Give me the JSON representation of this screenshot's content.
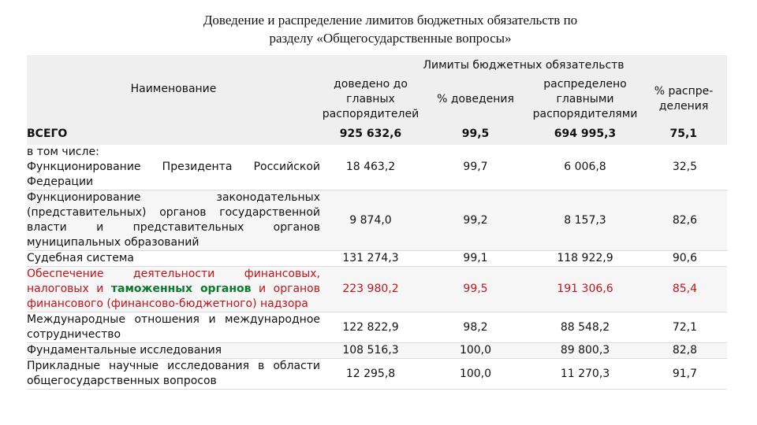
{
  "title": {
    "line1": "Доведение и распределение лимитов бюджетных обязательств по",
    "line2": "разделу «Общегосударственные вопросы»"
  },
  "table": {
    "name_header": "Наименование",
    "group_header": "Лимиты бюджетных обязательств",
    "columns": [
      "доведено до главных распорядителей",
      "% доведения",
      "распределено главными распорядителями",
      "% распре-деления"
    ],
    "total": {
      "label": "ВСЕГО",
      "values": [
        "925 632,6",
        "99,5",
        "694 995,3",
        "75,1"
      ]
    },
    "subheader": "в том числе:",
    "rows": [
      {
        "label": "Функционирование Президента Российской Федерации",
        "values": [
          "18 463,2",
          "99,7",
          "6 006,8",
          "32,5"
        ]
      },
      {
        "label": "Функционирование законодательных (представительных) органов государственной власти и представительных органов муниципальных образований",
        "values": [
          "9 874,0",
          "99,2",
          "8 157,3",
          "82,6"
        ]
      },
      {
        "label": "Судебная система",
        "values": [
          "131 274,3",
          "99,1",
          "118 922,9",
          "90,6"
        ]
      },
      {
        "label_parts": [
          "Обеспечение деятельности финансовых, налоговых и ",
          "таможенных органов",
          " и органов финансового (финансово-бюджетного) надзора"
        ],
        "values": [
          "223 980,2",
          "99,5",
          "191 306,6",
          "85,4"
        ],
        "color": "#c0141b",
        "highlight_color": "#0c7a2c"
      },
      {
        "label": "Международные отношения и международное сотрудничество",
        "values": [
          "122 822,9",
          "98,2",
          "88 548,2",
          "72,1"
        ]
      },
      {
        "label": "Фундаментальные исследования",
        "values": [
          "108 516,3",
          "100,0",
          "89 800,3",
          "82,8"
        ]
      },
      {
        "label": "Прикладные научные исследования в области общегосударственных вопросов",
        "values": [
          "12 295,8",
          "100,0",
          "11 270,3",
          "91,7"
        ]
      }
    ]
  }
}
